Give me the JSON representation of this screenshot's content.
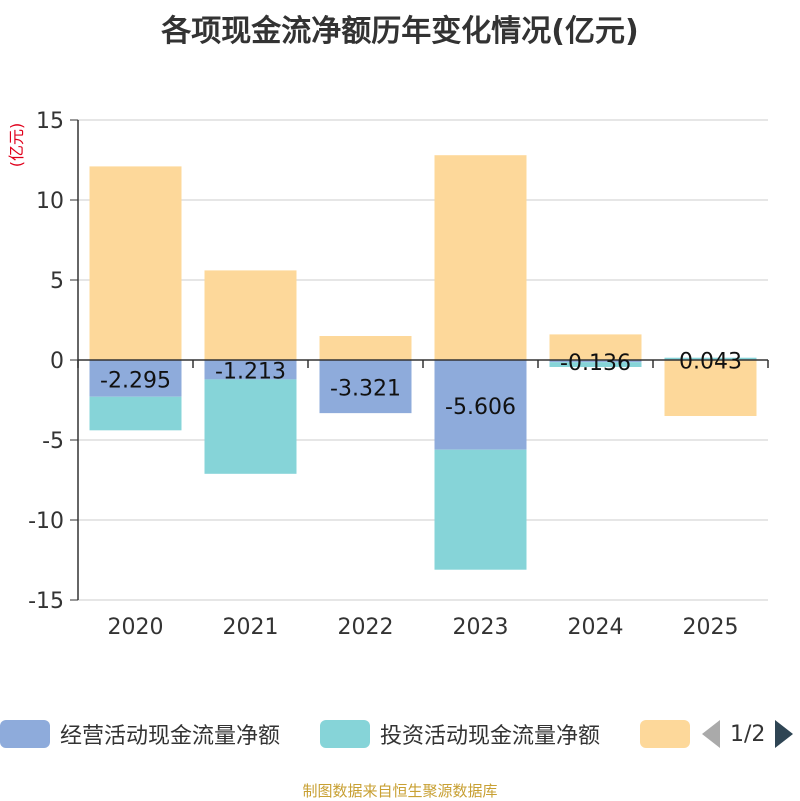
{
  "page": {
    "title": "各项现金流净额历年变化情况(亿元)",
    "source": "制图数据来自恒生聚源数据库"
  },
  "colors": {
    "operating": "#8eabdb",
    "investing": "#86d4d8",
    "financing": "#fdd89a",
    "axis": "#333333",
    "grid": "#cccccc",
    "unit": "#e0001b",
    "source": "#c8a033"
  },
  "legend": {
    "items": [
      {
        "name": "经营活动现金流量净额"
      },
      {
        "name": "投资活动现金流量净额"
      },
      {
        "name": ""
      }
    ],
    "pager": {
      "text": "1/2"
    }
  },
  "chart_data": {
    "type": "bar",
    "stacked": true,
    "title": "各项现金流净额历年变化情况(亿元)",
    "ylabel": "(亿元)",
    "xlabel": "",
    "ylim": [
      -15,
      15
    ],
    "yticks": [
      15,
      10,
      5,
      0,
      -5,
      -10,
      -15
    ],
    "grid": true,
    "categories": [
      "2020",
      "2021",
      "2022",
      "2023",
      "2024",
      "2025"
    ],
    "series": [
      {
        "name": "经营活动现金流量净额",
        "values": [
          -2.295,
          -1.213,
          -3.321,
          -5.606,
          -0.136,
          0.043
        ],
        "labels": [
          "-2.295",
          "-1.213",
          "-3.321",
          "-5.606",
          "-0.136",
          "0.043"
        ]
      },
      {
        "name": "投资活动现金流量净额",
        "values": [
          -2.1,
          -5.9,
          0.0,
          -7.5,
          -0.3,
          0.1
        ]
      },
      {
        "name": "",
        "values": [
          12.1,
          5.6,
          1.5,
          12.8,
          1.6,
          -3.5
        ]
      }
    ],
    "legend_position": "bottom"
  }
}
